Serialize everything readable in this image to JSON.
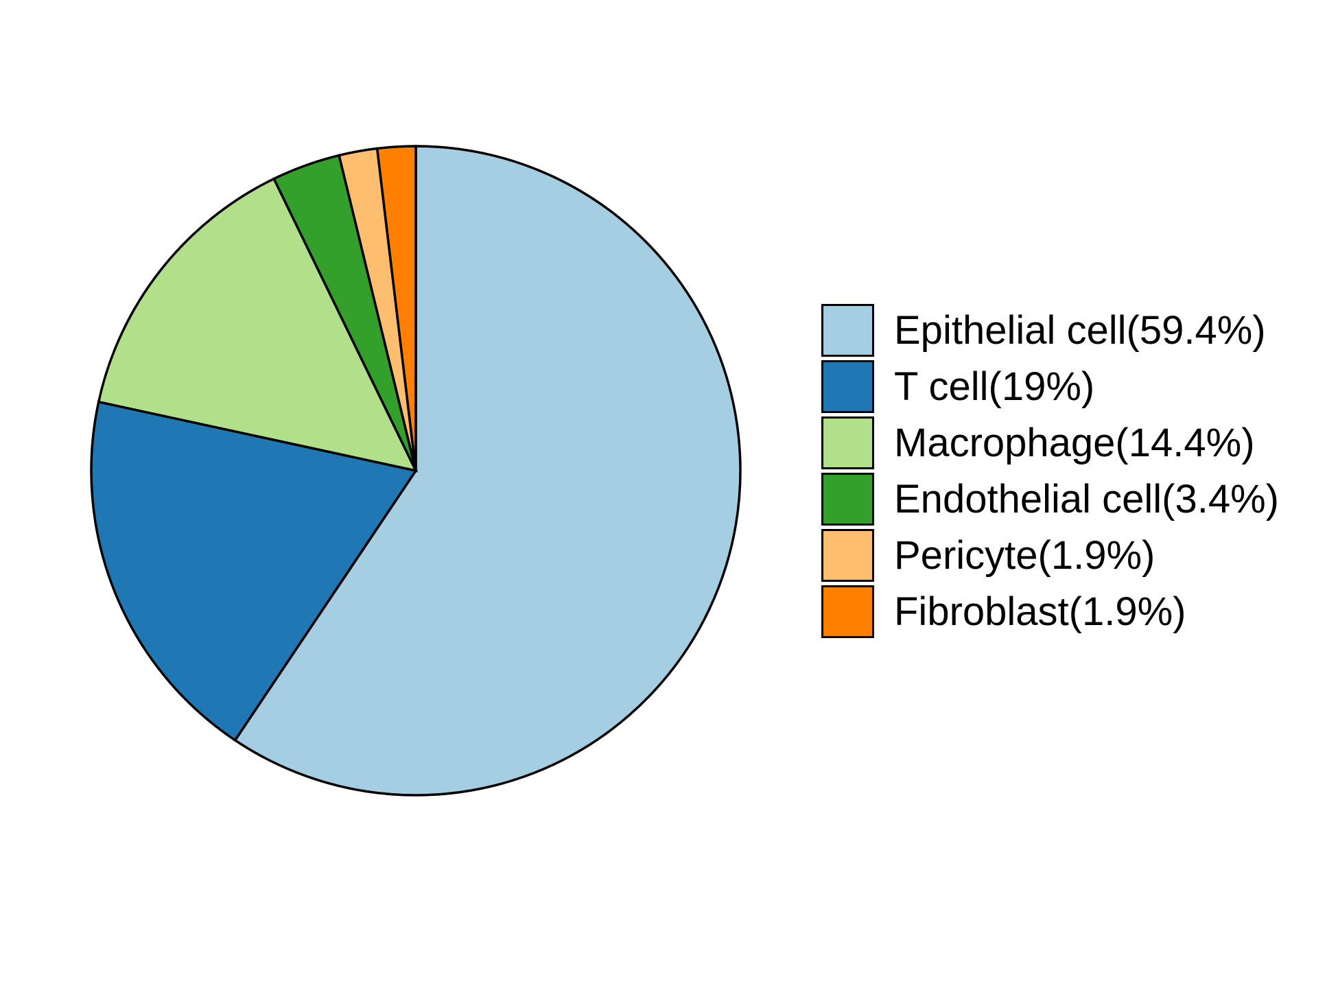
{
  "chart_data": {
    "type": "pie",
    "labels": [
      "Epithelial cell",
      "T cell",
      "Macrophage",
      "Endothelial cell",
      "Pericyte",
      "Fibroblast"
    ],
    "values": [
      59.4,
      19,
      14.4,
      3.4,
      1.9,
      1.9
    ],
    "legend_labels": [
      "Epithelial cell(59.4%)",
      "T cell(19%)",
      "Macrophage(14.4%)",
      "Endothelial cell(3.4%)",
      "Pericyte(1.9%)",
      "Fibroblast(1.9%)"
    ],
    "colors": [
      "#A6CEE3",
      "#1F78B4",
      "#B2DF8A",
      "#33A02C",
      "#FDBF6F",
      "#FF7F00"
    ],
    "stroke_color": "#000000",
    "title": "",
    "start_angle_deg": 0,
    "direction": "clockwise",
    "legend_position": "right",
    "background_color": "#ffffff"
  }
}
